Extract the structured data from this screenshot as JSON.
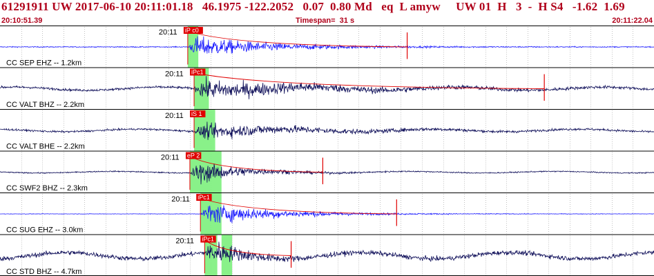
{
  "header": {
    "title": "61291911 UW 2017-06-10 20:11:01.18   46.1975 -122.2052   0.07  0.80 Md   eq  L amyw     UW 01  H   3  -  H S4   -1.62  1.69",
    "start_time": "20:10:51.39",
    "timespan_label": "Timespan=  31 s",
    "end_time": "20:11:22.04"
  },
  "colors": {
    "header_text": "#b0001a",
    "trace_blue": "#1a1aff",
    "trace_navy": "#10105a",
    "pick_red": "#e00000",
    "window_green": "#7cf07c",
    "grid_line": "#000000"
  },
  "chart_data": {
    "type": "line",
    "title": "",
    "xlabel": "",
    "ylabel": "",
    "xlim": [
      0,
      31
    ],
    "timespan_s": 31,
    "minute_tick": "20:11",
    "channels": [
      {
        "label": "CC SEP EHZ -- 1.2km",
        "trace_color": "blue",
        "pick_label": "iP c0",
        "pick_time_s": 8.9,
        "green_windows": [
          [
            8.9,
            9.4
          ]
        ],
        "coda_end_s": 19.3,
        "amplitude_max": 0.85,
        "noise_level": 0.04
      },
      {
        "label": "CC VALT BHZ -- 2.2km",
        "trace_color": "navy",
        "pick_label": "iPc1",
        "pick_time_s": 9.2,
        "green_windows": [
          [
            9.2,
            9.9
          ]
        ],
        "coda_end_s": 25.8,
        "amplitude_max": 0.75,
        "noise_level": 0.1
      },
      {
        "label": "CC VALT BHE -- 2.2km",
        "trace_color": "navy",
        "pick_label": "iS 1",
        "pick_time_s": 9.2,
        "green_windows": [
          [
            9.2,
            10.2
          ]
        ],
        "coda_end_s": null,
        "amplitude_max": 0.6,
        "noise_level": 0.08
      },
      {
        "label": "CC SWF2 BHZ -- 2.3km",
        "trace_color": "navy",
        "pick_label": "eP 2",
        "pick_time_s": 9.0,
        "green_windows": [
          [
            9.0,
            10.5
          ]
        ],
        "coda_end_s": 15.3,
        "amplitude_max": 0.9,
        "noise_level": 0.05
      },
      {
        "label": "CC SUG EHZ -- 3.0km",
        "trace_color": "blue",
        "pick_label": "iPc1",
        "pick_time_s": 9.5,
        "green_windows": [
          [
            9.5,
            10.5
          ]
        ],
        "coda_end_s": 18.8,
        "amplitude_max": 0.9,
        "noise_level": 0.02
      },
      {
        "label": "CC STD BHZ -- 4.7km",
        "trace_color": "navy",
        "pick_label": "iPc1",
        "pick_time_s": 9.7,
        "green_windows": [
          [
            9.7,
            10.3
          ],
          [
            10.5,
            11.0
          ]
        ],
        "coda_end_s": 13.8,
        "amplitude_max": 0.9,
        "noise_level": 0.2
      }
    ]
  }
}
